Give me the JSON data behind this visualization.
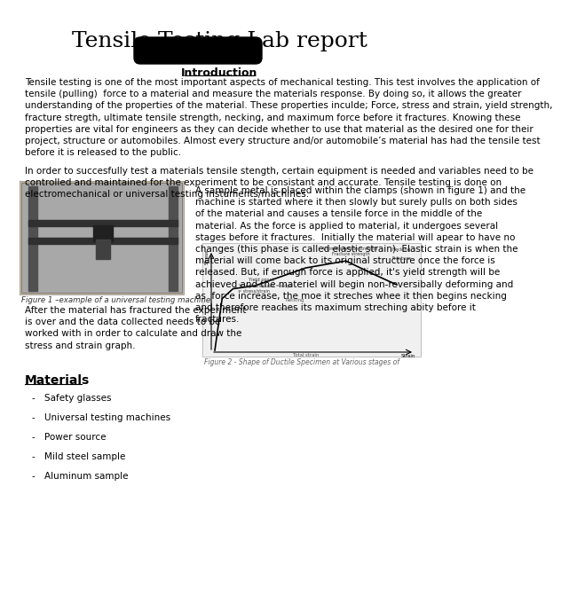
{
  "title": "Tensile Testing Lab report",
  "section_intro": "Introduction",
  "para1": "Tensile testing is one of the most important aspects of mechanical testing. This test involves the application of\ntensile (pulling)  force to a material and measure the materials response. By doing so, it allows the greater\nunderstanding of the properties of the material. These properties inculde; Force, stress and strain, yield strength,\nfracture stregth, ultimate tensile strength, necking, and maximum force before it fractures. Knowing these\nproperties are vital for engineers as they can decide whether to use that material as the desired one for their\nproject, structure or automobiles. Almost every structure and/or automobile’s material has had the tensile test\nbefore it is released to the public.",
  "para2": "In order to succesfully test a materials tensile stength, certain equipment is needed and variables need to be\ncontrolled and maintained for the experiment to be consistant and accurate. Tensile testing is done on\nelectromechanical or universal testing instuments/machines.",
  "right_text": "A sample metal is placed within the clamps (shown in figure 1) and the\nmachine is started where it then slowly but surely pulls on both sides\nof the material and causes a tensile force in the middle of the\nmaterial. As the force is applied to material, it undergoes several\nstages before it fractures.  Initially the material will apear to have no\nchanges (this phase is called elastic strain). Elastic strain is when the\nmaterial will come back to its original structure once the force is\nreleased. But, if enough force is applied, it's yield strength will be\nachieved and the materiel will begin non-reversibally deforming and\nas  force increase, the moe it streches whee it then begins necking\nand therefore reaches its maximum streching abity before it\nfractures.",
  "fig1_caption": "Figure 1 –example of a universal testing machine.",
  "fig2_caption": "Figure 2 - Shape of Ductile Specimen at Various stages of",
  "left_text": "After the material has fractured the experiment\nis over and the data collected needs to be\nworked with in order to calculate and draw the\nstress and strain graph.",
  "materials_title": "Materials",
  "materials": [
    "Safety glasses",
    "Universal testing machines",
    "Power source",
    "Mild steel sample",
    "Aluminum sample"
  ],
  "bg_color": "#ffffff",
  "text_color": "#000000",
  "title_fontsize": 18,
  "body_fontsize": 7.5,
  "section_fontsize": 9
}
